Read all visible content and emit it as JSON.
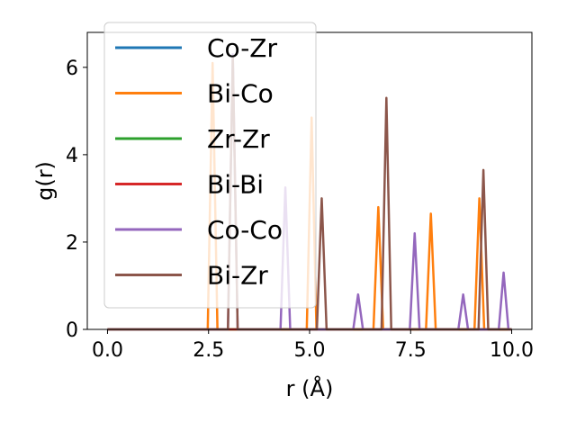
{
  "chart_data": {
    "type": "line",
    "xlabel": "r (Å)",
    "ylabel": "g(r)",
    "xlim": [
      -0.5,
      10.5
    ],
    "ylim": [
      0,
      6.8
    ],
    "xticks": [
      0.0,
      2.5,
      5.0,
      7.5,
      10.0
    ],
    "xtick_labels": [
      "0.0",
      "2.5",
      "5.0",
      "7.5",
      "10.0"
    ],
    "yticks": [
      0,
      2,
      4,
      6
    ],
    "ytick_labels": [
      "0",
      "2",
      "4",
      "6"
    ],
    "grid": false,
    "legend_position": "top-left",
    "peak_half_width": 0.12,
    "series": [
      {
        "name": "Co-Zr",
        "color": "#1f77b4",
        "peaks": []
      },
      {
        "name": "Bi-Co",
        "color": "#ff7f0e",
        "peaks": [
          [
            2.6,
            6.1
          ],
          [
            5.05,
            4.85
          ],
          [
            6.7,
            2.8
          ],
          [
            8.0,
            2.65
          ],
          [
            9.2,
            3.0
          ]
        ]
      },
      {
        "name": "Zr-Zr",
        "color": "#2ca02c",
        "peaks": []
      },
      {
        "name": "Bi-Bi",
        "color": "#d62728",
        "peaks": []
      },
      {
        "name": "Co-Co",
        "color": "#9467bd",
        "peaks": [
          [
            3.1,
            6.3
          ],
          [
            4.4,
            3.25
          ],
          [
            6.2,
            0.8
          ],
          [
            7.6,
            2.2
          ],
          [
            8.8,
            0.8
          ],
          [
            9.8,
            1.3
          ]
        ]
      },
      {
        "name": "Bi-Zr",
        "color": "#8c564b",
        "peaks": [
          [
            3.1,
            6.25
          ],
          [
            5.3,
            3.0
          ],
          [
            6.9,
            5.3
          ],
          [
            9.3,
            3.65
          ]
        ]
      }
    ]
  }
}
